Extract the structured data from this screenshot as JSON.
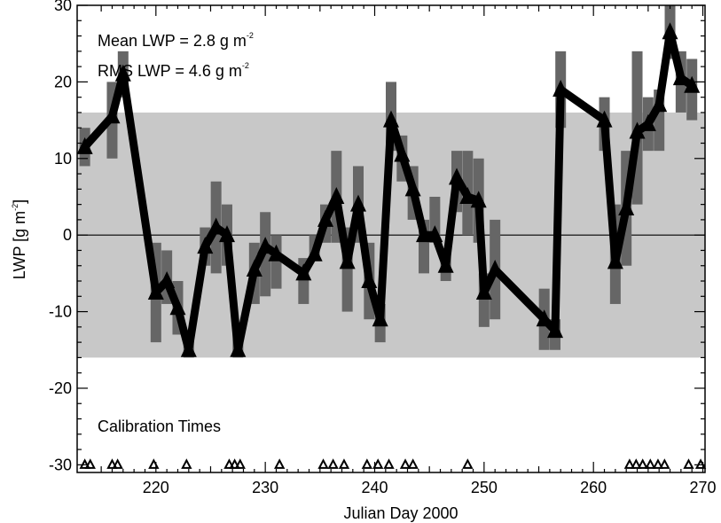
{
  "chart_data": {
    "type": "line",
    "xlabel": "Julian Day 2000",
    "ylabel": "LWP [g m",
    "ylabel_sup": "-2",
    "ylabel_tail": "]",
    "xlim": [
      212.8,
      270.2
    ],
    "ylim": [
      -31,
      30
    ],
    "x_ticks": [
      220,
      230,
      240,
      250,
      260,
      270
    ],
    "y_ticks": [
      -30,
      -20,
      -10,
      0,
      10,
      20,
      30
    ],
    "band": [
      -16,
      16
    ],
    "zero_line": 0,
    "annotations": {
      "mean_prefix": "Mean LWP =  2.8 g m",
      "mean_sup": "-2",
      "rms_prefix": "RMS  LWP =  4.6 g m",
      "rms_sup": "-2",
      "calibration_label": "Calibration Times"
    },
    "series": [
      {
        "x": [
          213.5,
          216.0,
          217.0,
          220.0,
          221.0,
          222.0,
          223.0,
          224.5,
          225.5,
          226.5,
          227.5,
          229.0,
          230.0,
          231.0,
          233.5,
          234.5,
          235.5,
          236.5,
          237.5,
          238.5,
          239.5,
          240.5,
          241.5,
          242.5,
          243.5,
          244.5,
          245.5,
          246.5,
          247.5,
          248.5,
          249.5,
          250.0,
          251.0,
          255.5,
          256.5,
          257.0,
          261.0,
          262.0,
          263.0,
          264.0,
          265.0,
          266.0,
          267.0,
          268.0,
          269.0
        ],
        "values": [
          11.5,
          15.5,
          21.0,
          -7.5,
          -6.0,
          -9.5,
          -15.0,
          -1.5,
          1.0,
          0.0,
          -15.0,
          -4.5,
          -1.5,
          -2.5,
          -5.0,
          -2.5,
          2.0,
          5.0,
          -3.5,
          4.0,
          -6.0,
          -11.0,
          15.0,
          10.5,
          6.0,
          0.0,
          0.0,
          -4.0,
          7.5,
          5.0,
          4.5,
          -7.5,
          -4.5,
          -11.0,
          -12.5,
          19.0,
          15.0,
          -3.5,
          3.5,
          13.5,
          14.5,
          17.0,
          26.5,
          20.5,
          19.5
        ]
      }
    ],
    "error_bars": [
      {
        "x": 213.5,
        "lo": 9,
        "hi": 14
      },
      {
        "x": 216.0,
        "lo": 10,
        "hi": 20
      },
      {
        "x": 217.0,
        "lo": 18,
        "hi": 24
      },
      {
        "x": 220.0,
        "lo": -14,
        "hi": -1
      },
      {
        "x": 221.0,
        "lo": -9,
        "hi": -2
      },
      {
        "x": 222.0,
        "lo": -13,
        "hi": -6
      },
      {
        "x": 223.0,
        "lo": -16,
        "hi": -13
      },
      {
        "x": 224.5,
        "lo": -4,
        "hi": 1
      },
      {
        "x": 225.5,
        "lo": -5,
        "hi": 7
      },
      {
        "x": 226.5,
        "lo": -4,
        "hi": 4
      },
      {
        "x": 227.5,
        "lo": -16,
        "hi": -12
      },
      {
        "x": 229.0,
        "lo": -9,
        "hi": -1
      },
      {
        "x": 230.0,
        "lo": -8,
        "hi": 3
      },
      {
        "x": 231.0,
        "lo": -7,
        "hi": 0
      },
      {
        "x": 233.5,
        "lo": -9,
        "hi": -3
      },
      {
        "x": 234.5,
        "lo": -3,
        "hi": 0
      },
      {
        "x": 235.5,
        "lo": -1,
        "hi": 4
      },
      {
        "x": 236.5,
        "lo": -1,
        "hi": 11
      },
      {
        "x": 237.5,
        "lo": -10,
        "hi": 1
      },
      {
        "x": 238.5,
        "lo": -1,
        "hi": 9
      },
      {
        "x": 239.5,
        "lo": -11,
        "hi": -1
      },
      {
        "x": 240.5,
        "lo": -14,
        "hi": -9
      },
      {
        "x": 241.5,
        "lo": 11,
        "hi": 20
      },
      {
        "x": 242.5,
        "lo": 7,
        "hi": 13
      },
      {
        "x": 243.5,
        "lo": 2,
        "hi": 9
      },
      {
        "x": 244.5,
        "lo": -5,
        "hi": 2
      },
      {
        "x": 245.5,
        "lo": -1,
        "hi": 5
      },
      {
        "x": 246.5,
        "lo": -6,
        "hi": -2
      },
      {
        "x": 247.5,
        "lo": 3,
        "hi": 11
      },
      {
        "x": 248.5,
        "lo": 0,
        "hi": 11
      },
      {
        "x": 249.5,
        "lo": -1,
        "hi": 10
      },
      {
        "x": 250.0,
        "lo": -12,
        "hi": -5
      },
      {
        "x": 251.0,
        "lo": -11,
        "hi": 2
      },
      {
        "x": 255.5,
        "lo": -15,
        "hi": -7
      },
      {
        "x": 256.5,
        "lo": -15,
        "hi": -11
      },
      {
        "x": 257.0,
        "lo": 14,
        "hi": 24
      },
      {
        "x": 261.0,
        "lo": 11,
        "hi": 18
      },
      {
        "x": 262.0,
        "lo": -9,
        "hi": 4
      },
      {
        "x": 263.0,
        "lo": -4,
        "hi": 11
      },
      {
        "x": 264.0,
        "lo": 4,
        "hi": 24
      },
      {
        "x": 265.0,
        "lo": 11,
        "hi": 18
      },
      {
        "x": 266.0,
        "lo": 11,
        "hi": 19
      },
      {
        "x": 267.0,
        "lo": 23,
        "hi": 30
      },
      {
        "x": 268.0,
        "lo": 16,
        "hi": 24
      },
      {
        "x": 269.0,
        "lo": 15,
        "hi": 23
      }
    ],
    "calibration_times": [
      213.5,
      214.0,
      216.0,
      216.5,
      219.8,
      222.8,
      226.7,
      227.2,
      227.7,
      231.3,
      235.3,
      236.2,
      237.2,
      239.3,
      240.3,
      241.3,
      242.8,
      243.5,
      248.5,
      263.3,
      263.9,
      264.5,
      265.2,
      265.9,
      266.5,
      268.7,
      269.8
    ],
    "grid": false,
    "colors": {
      "band": "#c8c8c8",
      "error_bar": "#666666",
      "line": "#000000",
      "axis": "#000000",
      "background": "#ffffff"
    }
  }
}
